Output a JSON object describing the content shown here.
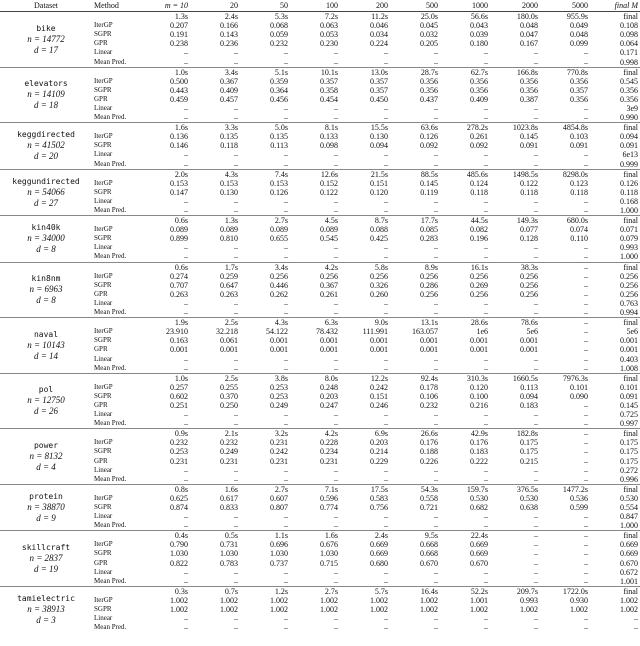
{
  "header": {
    "columns": [
      "Dataset",
      "Method",
      "m = 10",
      "20",
      "50",
      "100",
      "200",
      "500",
      "1000",
      "2000",
      "5000",
      "final M"
    ]
  },
  "datasets": [
    {
      "name": "bike",
      "n": "n = 14772",
      "d": "d = 17",
      "times": [
        "1.3s",
        "2.4s",
        "5.3s",
        "7.2s",
        "11.2s",
        "25.0s",
        "56.6s",
        "180.0s",
        "955.9s",
        "final"
      ],
      "rows": [
        {
          "method": "IterGP",
          "values": [
            "0.207",
            "0.166",
            "0.068",
            "0.063",
            "0.046",
            "0.045",
            "0.043",
            "0.048",
            "0.049",
            "0.108"
          ]
        },
        {
          "method": "SGPR",
          "values": [
            "0.191",
            "0.143",
            "0.059",
            "0.053",
            "0.034",
            "0.032",
            "0.039",
            "0.047",
            "0.048",
            "0.098"
          ]
        },
        {
          "method": "GPR",
          "values": [
            "0.238",
            "0.236",
            "0.232",
            "0.230",
            "0.224",
            "0.205",
            "0.180",
            "0.167",
            "0.099",
            "0.064"
          ]
        },
        {
          "method": "Linear",
          "values": [
            "–",
            "–",
            "–",
            "–",
            "–",
            "–",
            "–",
            "–",
            "–",
            "0.171"
          ]
        },
        {
          "method": "Mean Pred.",
          "values": [
            "–",
            "–",
            "–",
            "–",
            "–",
            "–",
            "–",
            "–",
            "–",
            "0.998"
          ]
        }
      ]
    },
    {
      "name": "elevators",
      "n": "n = 14109",
      "d": "d = 18",
      "times": [
        "1.0s",
        "3.4s",
        "5.1s",
        "10.1s",
        "13.0s",
        "28.7s",
        "62.7s",
        "166.8s",
        "770.8s",
        "final"
      ],
      "rows": [
        {
          "method": "IterGP",
          "values": [
            "0.500",
            "0.367",
            "0.359",
            "0.357",
            "0.357",
            "0.356",
            "0.356",
            "0.356",
            "0.356",
            "0.545"
          ]
        },
        {
          "method": "SGPR",
          "values": [
            "0.443",
            "0.409",
            "0.364",
            "0.358",
            "0.357",
            "0.356",
            "0.356",
            "0.356",
            "0.357",
            "0.356"
          ]
        },
        {
          "method": "GPR",
          "values": [
            "0.459",
            "0.457",
            "0.456",
            "0.454",
            "0.450",
            "0.437",
            "0.409",
            "0.387",
            "0.356",
            "0.356"
          ]
        },
        {
          "method": "Linear",
          "values": [
            "–",
            "–",
            "–",
            "–",
            "–",
            "–",
            "–",
            "–",
            "–",
            "3e9"
          ]
        },
        {
          "method": "Mean Pred.",
          "values": [
            "–",
            "–",
            "–",
            "–",
            "–",
            "–",
            "–",
            "–",
            "–",
            "0.990"
          ]
        }
      ]
    },
    {
      "name": "keggdirected",
      "n": "n = 41502",
      "d": "d = 20",
      "times": [
        "1.6s",
        "3.3s",
        "5.0s",
        "8.1s",
        "15.5s",
        "63.6s",
        "278.2s",
        "1023.8s",
        "4854.8s",
        "final"
      ],
      "rows": [
        {
          "method": "IterGP",
          "values": [
            "0.136",
            "0.135",
            "0.135",
            "0.133",
            "0.130",
            "0.126",
            "0.261",
            "0.145",
            "0.103",
            "0.094"
          ]
        },
        {
          "method": "SGPR",
          "values": [
            "0.146",
            "0.118",
            "0.113",
            "0.098",
            "0.094",
            "0.092",
            "0.092",
            "0.091",
            "0.091",
            "0.091"
          ]
        },
        {
          "method": "Linear",
          "values": [
            "–",
            "–",
            "–",
            "–",
            "–",
            "–",
            "–",
            "–",
            "–",
            "6e13"
          ]
        },
        {
          "method": "Mean Pred.",
          "values": [
            "–",
            "–",
            "–",
            "–",
            "–",
            "–",
            "–",
            "–",
            "–",
            "0.999"
          ]
        }
      ]
    },
    {
      "name": "keggundirected",
      "n": "n = 54066",
      "d": "d = 27",
      "times": [
        "2.0s",
        "4.3s",
        "7.4s",
        "12.6s",
        "21.5s",
        "88.5s",
        "485.6s",
        "1498.5s",
        "8298.0s",
        "final"
      ],
      "rows": [
        {
          "method": "IterGP",
          "values": [
            "0.153",
            "0.153",
            "0.153",
            "0.152",
            "0.151",
            "0.145",
            "0.124",
            "0.122",
            "0.123",
            "0.126"
          ]
        },
        {
          "method": "SGPR",
          "values": [
            "0.147",
            "0.130",
            "0.126",
            "0.122",
            "0.120",
            "0.119",
            "0.118",
            "0.118",
            "0.118",
            "0.118"
          ]
        },
        {
          "method": "Linear",
          "values": [
            "–",
            "–",
            "–",
            "–",
            "–",
            "–",
            "–",
            "–",
            "–",
            "0.168"
          ]
        },
        {
          "method": "Mean Pred.",
          "values": [
            "–",
            "–",
            "–",
            "–",
            "–",
            "–",
            "–",
            "–",
            "–",
            "1.000"
          ]
        }
      ]
    },
    {
      "name": "kin40k",
      "n": "n = 34000",
      "d": "d = 8",
      "times": [
        "0.6s",
        "1.3s",
        "2.7s",
        "4.5s",
        "8.7s",
        "17.7s",
        "44.5s",
        "149.3s",
        "680.0s",
        "final"
      ],
      "rows": [
        {
          "method": "IterGP",
          "values": [
            "0.089",
            "0.089",
            "0.089",
            "0.089",
            "0.088",
            "0.085",
            "0.082",
            "0.077",
            "0.074",
            "0.071"
          ]
        },
        {
          "method": "SGPR",
          "values": [
            "0.899",
            "0.810",
            "0.655",
            "0.545",
            "0.425",
            "0.283",
            "0.196",
            "0.128",
            "0.110",
            "0.079"
          ]
        },
        {
          "method": "Linear",
          "values": [
            "–",
            "–",
            "–",
            "–",
            "–",
            "–",
            "–",
            "–",
            "–",
            "0.993"
          ]
        },
        {
          "method": "Mean Pred.",
          "values": [
            "–",
            "–",
            "–",
            "–",
            "–",
            "–",
            "–",
            "–",
            "–",
            "1.000"
          ]
        }
      ]
    },
    {
      "name": "kin8nm",
      "n": "n = 6963",
      "d": "d = 8",
      "times": [
        "0.6s",
        "1.7s",
        "3.4s",
        "4.2s",
        "5.8s",
        "8.9s",
        "16.1s",
        "38.3s",
        "–",
        "final"
      ],
      "rows": [
        {
          "method": "IterGP",
          "values": [
            "0.274",
            "0.259",
            "0.256",
            "0.256",
            "0.256",
            "0.256",
            "0.256",
            "0.256",
            "–",
            "0.256"
          ]
        },
        {
          "method": "SGPR",
          "values": [
            "0.707",
            "0.647",
            "0.446",
            "0.367",
            "0.326",
            "0.286",
            "0.269",
            "0.256",
            "–",
            "0.256"
          ]
        },
        {
          "method": "GPR",
          "values": [
            "0.263",
            "0.263",
            "0.262",
            "0.261",
            "0.260",
            "0.256",
            "0.256",
            "0.256",
            "–",
            "0.256"
          ]
        },
        {
          "method": "Linear",
          "values": [
            "–",
            "–",
            "–",
            "–",
            "–",
            "–",
            "–",
            "–",
            "–",
            "0.763"
          ]
        },
        {
          "method": "Mean Pred.",
          "values": [
            "–",
            "–",
            "–",
            "–",
            "–",
            "–",
            "–",
            "–",
            "–",
            "0.994"
          ]
        }
      ]
    },
    {
      "name": "naval",
      "n": "n = 10143",
      "d": "d = 14",
      "times": [
        "1.9s",
        "2.5s",
        "4.3s",
        "6.3s",
        "9.0s",
        "13.1s",
        "28.6s",
        "78.6s",
        "–",
        "final"
      ],
      "rows": [
        {
          "method": "IterGP",
          "values": [
            "23.910",
            "32.218",
            "54.122",
            "78.432",
            "111.991",
            "163.057",
            "1e6",
            "5e6",
            "–",
            "5e6"
          ]
        },
        {
          "method": "SGPR",
          "values": [
            "0.163",
            "0.061",
            "0.001",
            "0.001",
            "0.001",
            "0.001",
            "0.001",
            "0.001",
            "–",
            "0.001"
          ]
        },
        {
          "method": "GPR",
          "values": [
            "0.001",
            "0.001",
            "0.001",
            "0.001",
            "0.001",
            "0.001",
            "0.001",
            "0.001",
            "–",
            "0.001"
          ]
        },
        {
          "method": "Linear",
          "values": [
            "–",
            "–",
            "–",
            "–",
            "–",
            "–",
            "–",
            "–",
            "–",
            "0.403"
          ]
        },
        {
          "method": "Mean Pred.",
          "values": [
            "–",
            "–",
            "–",
            "–",
            "–",
            "–",
            "–",
            "–",
            "–",
            "1.008"
          ]
        }
      ]
    },
    {
      "name": "pol",
      "n": "n = 12750",
      "d": "d = 26",
      "times": [
        "1.0s",
        "2.5s",
        "3.8s",
        "8.0s",
        "12.2s",
        "92.4s",
        "310.3s",
        "1660.5s",
        "7976.3s",
        "final"
      ],
      "rows": [
        {
          "method": "IterGP",
          "values": [
            "0.257",
            "0.255",
            "0.253",
            "0.248",
            "0.242",
            "0.178",
            "0.120",
            "0.113",
            "0.101",
            "0.101"
          ]
        },
        {
          "method": "SGPR",
          "values": [
            "0.602",
            "0.370",
            "0.253",
            "0.203",
            "0.151",
            "0.106",
            "0.100",
            "0.094",
            "0.090",
            "0.091"
          ]
        },
        {
          "method": "GPR",
          "values": [
            "0.251",
            "0.250",
            "0.249",
            "0.247",
            "0.246",
            "0.232",
            "0.216",
            "0.183",
            "–",
            "0.145"
          ]
        },
        {
          "method": "Linear",
          "values": [
            "–",
            "–",
            "–",
            "–",
            "–",
            "–",
            "–",
            "–",
            "–",
            "0.725"
          ]
        },
        {
          "method": "Mean Pred.",
          "values": [
            "–",
            "–",
            "–",
            "–",
            "–",
            "–",
            "–",
            "–",
            "–",
            "0.997"
          ]
        }
      ]
    },
    {
      "name": "power",
      "n": "n = 8132",
      "d": "d = 4",
      "times": [
        "0.9s",
        "2.1s",
        "3.2s",
        "4.2s",
        "6.9s",
        "26.6s",
        "42.9s",
        "182.8s",
        "–",
        "final"
      ],
      "rows": [
        {
          "method": "IterGP",
          "values": [
            "0.232",
            "0.232",
            "0.231",
            "0.228",
            "0.203",
            "0.176",
            "0.176",
            "0.175",
            "–",
            "0.175"
          ]
        },
        {
          "method": "SGPR",
          "values": [
            "0.253",
            "0.249",
            "0.242",
            "0.234",
            "0.214",
            "0.188",
            "0.183",
            "0.175",
            "–",
            "0.175"
          ]
        },
        {
          "method": "GPR",
          "values": [
            "0.231",
            "0.231",
            "0.231",
            "0.231",
            "0.229",
            "0.226",
            "0.222",
            "0.215",
            "–",
            "0.175"
          ]
        },
        {
          "method": "Linear",
          "values": [
            "–",
            "–",
            "–",
            "–",
            "–",
            "–",
            "–",
            "–",
            "–",
            "0.272"
          ]
        },
        {
          "method": "Mean Pred.",
          "values": [
            "–",
            "–",
            "–",
            "–",
            "–",
            "–",
            "–",
            "–",
            "–",
            "0.996"
          ]
        }
      ]
    },
    {
      "name": "protein",
      "n": "n = 38870",
      "d": "d = 9",
      "times": [
        "0.8s",
        "1.6s",
        "2.7s",
        "7.1s",
        "17.5s",
        "54.3s",
        "159.7s",
        "376.5s",
        "1477.2s",
        "final"
      ],
      "rows": [
        {
          "method": "IterGP",
          "values": [
            "0.625",
            "0.617",
            "0.607",
            "0.596",
            "0.583",
            "0.558",
            "0.530",
            "0.530",
            "0.536",
            "0.530"
          ]
        },
        {
          "method": "SGPR",
          "values": [
            "0.874",
            "0.833",
            "0.807",
            "0.774",
            "0.756",
            "0.721",
            "0.682",
            "0.638",
            "0.599",
            "0.554"
          ]
        },
        {
          "method": "Linear",
          "values": [
            "–",
            "–",
            "–",
            "–",
            "–",
            "–",
            "–",
            "–",
            "–",
            "0.847"
          ]
        },
        {
          "method": "Mean Pred.",
          "values": [
            "–",
            "–",
            "–",
            "–",
            "–",
            "–",
            "–",
            "–",
            "–",
            "1.000"
          ]
        }
      ]
    },
    {
      "name": "skillcraft",
      "n": "n = 2837",
      "d": "d = 19",
      "times": [
        "0.4s",
        "0.5s",
        "1.1s",
        "1.6s",
        "2.4s",
        "9.5s",
        "22.4s",
        "–",
        "–",
        "final"
      ],
      "rows": [
        {
          "method": "IterGP",
          "values": [
            "0.790",
            "0.731",
            "0.696",
            "0.676",
            "0.669",
            "0.668",
            "0.669",
            "–",
            "–",
            "0.669"
          ]
        },
        {
          "method": "SGPR",
          "values": [
            "1.030",
            "1.030",
            "1.030",
            "1.030",
            "0.669",
            "0.668",
            "0.669",
            "–",
            "–",
            "0.669"
          ]
        },
        {
          "method": "GPR",
          "values": [
            "0.822",
            "0.783",
            "0.737",
            "0.715",
            "0.680",
            "0.670",
            "0.670",
            "–",
            "–",
            "0.670"
          ]
        },
        {
          "method": "Linear",
          "values": [
            "–",
            "–",
            "–",
            "–",
            "–",
            "–",
            "–",
            "–",
            "–",
            "0.672"
          ]
        },
        {
          "method": "Mean Pred.",
          "values": [
            "–",
            "–",
            "–",
            "–",
            "–",
            "–",
            "–",
            "–",
            "–",
            "1.001"
          ]
        }
      ]
    },
    {
      "name": "tamielectric",
      "n": "n = 38913",
      "d": "d = 3",
      "times": [
        "0.3s",
        "0.7s",
        "1.2s",
        "2.7s",
        "5.7s",
        "16.4s",
        "52.2s",
        "209.7s",
        "1722.0s",
        "final"
      ],
      "rows": [
        {
          "method": "IterGP",
          "values": [
            "1.002",
            "1.002",
            "1.002",
            "1.002",
            "1.002",
            "1.002",
            "1.001",
            "0.993",
            "0.930",
            "1.002"
          ]
        },
        {
          "method": "SGPR",
          "values": [
            "1.002",
            "1.002",
            "1.002",
            "1.002",
            "1.002",
            "1.002",
            "1.002",
            "1.002",
            "1.002",
            "1.002"
          ]
        },
        {
          "method": "Linear",
          "values": [
            "–",
            "–",
            "–",
            "–",
            "–",
            "–",
            "–",
            "–",
            "–",
            "–"
          ]
        },
        {
          "method": "Mean Pred.",
          "values": [
            "–",
            "–",
            "–",
            "–",
            "–",
            "–",
            "–",
            "–",
            "–",
            "–"
          ]
        }
      ]
    }
  ]
}
